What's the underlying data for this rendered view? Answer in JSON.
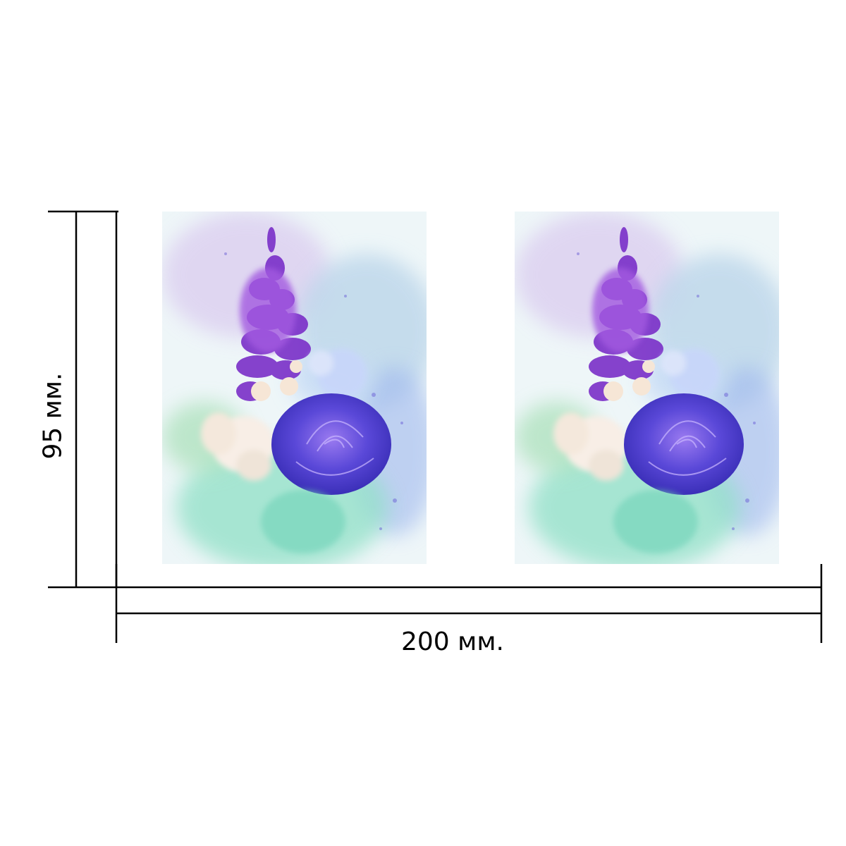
{
  "dimensions": {
    "height_label": "95 мм.",
    "width_label": "200 мм."
  },
  "artwork": {
    "panels": [
      "left",
      "right"
    ]
  },
  "colors": {
    "line": "#000000",
    "violet": "#7a2fc8",
    "rose_blue": "#5a48d8",
    "mint": "#7fd9c0",
    "cream": "#f6e6d6"
  }
}
